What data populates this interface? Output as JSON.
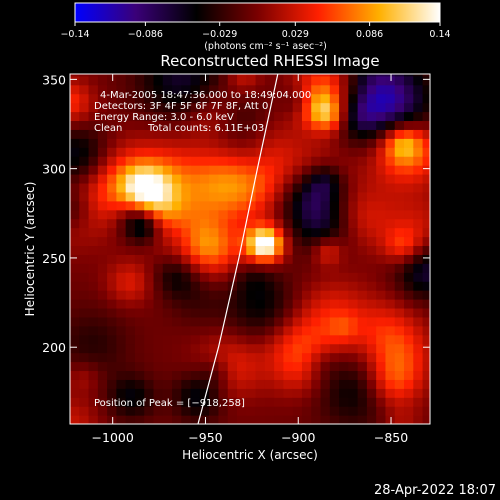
{
  "chart_data": {
    "type": "heatmap",
    "title": "Reconstructed RHESSI Image",
    "xlabel": "Heliocentric X (arcsec)",
    "ylabel": "Heliocentric Y (arcsec)",
    "xlim": [
      -1023,
      -829
    ],
    "ylim": [
      157,
      353
    ],
    "x_ticks": [
      -1000,
      -950,
      -900,
      -850
    ],
    "x_tick_labels": [
      "−1000",
      "−950",
      "−900",
      "−850"
    ],
    "y_ticks": [
      200,
      250,
      300,
      350
    ],
    "y_tick_labels": [
      "200",
      "250",
      "300",
      "350"
    ],
    "annotations": {
      "time_range": "4-Mar-2005 18:47:36.000 to 18:49:04.000",
      "detectors": "Detectors: 3F 4F 5F 6F 7F 8F, Att 0",
      "energy": "Energy Range: 3.0 - 6.0 keV",
      "method": "Clean",
      "counts": "Total counts: 6.11E+03",
      "peak": "Position of Peak = [−918,258]"
    },
    "peak_position": [
      -918,
      258
    ],
    "limb_curve_x_at_y": [
      [
        -954,
        157
      ],
      [
        -943,
        200
      ],
      [
        -932,
        250
      ],
      [
        -922,
        300
      ],
      [
        -911,
        353
      ]
    ],
    "colorbar": {
      "range": [
        -0.14,
        0.14
      ],
      "tick_values": [
        -0.14,
        -0.086,
        -0.029,
        0.029,
        0.086,
        0.14
      ],
      "tick_labels": [
        "−0.14",
        "−0.086",
        "−0.029",
        "0.029",
        "0.086",
        "0.14"
      ],
      "unit": "(photons cm⁻² s⁻¹ asec⁻²)",
      "colors": [
        "#0000ff",
        "#3a0078",
        "#000000",
        "#7a0000",
        "#ff2000",
        "#ffb000",
        "#ffffff"
      ]
    },
    "grid": false,
    "legend": "none"
  },
  "footer": {
    "timestamp": "28-Apr-2022 18:07"
  }
}
